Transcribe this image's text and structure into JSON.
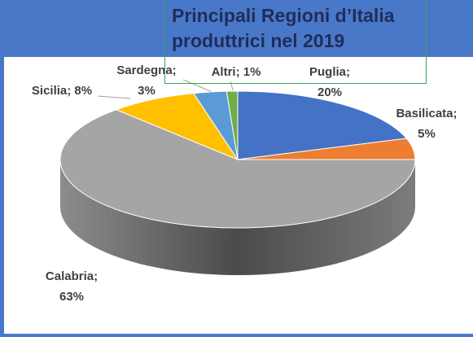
{
  "chart_data": {
    "type": "pie",
    "title": "Principali Regioni d’Italia produttrici nel 2019",
    "categories": [
      "Puglia",
      "Basilicata",
      "Calabria",
      "Sicilia",
      "Sardegna",
      "Altri"
    ],
    "values": [
      20,
      5,
      63,
      8,
      3,
      1
    ],
    "value_labels": [
      "Puglia; 20%",
      "Basilicata; 5%",
      "Calabria; 63%",
      "Sicilia; 8%",
      "Sardegna; 3%",
      "Altri; 1%"
    ],
    "colors": [
      "#4472c4",
      "#ed7d31",
      "#a5a5a5",
      "#ffc000",
      "#5b9bd5",
      "#70ad47"
    ]
  }
}
